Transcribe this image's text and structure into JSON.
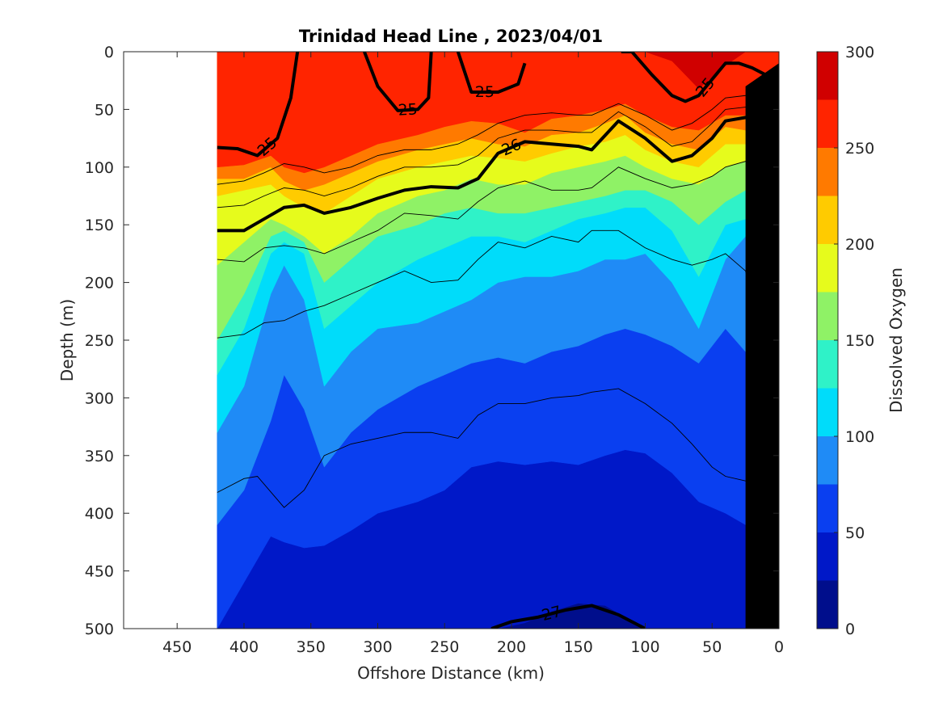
{
  "chart_data": {
    "type": "contour",
    "title": "Trinidad Head Line , 2023/04/01",
    "xlabel": "Offshore Distance (km)",
    "ylabel": "Depth (m)",
    "xlim": [
      490,
      0
    ],
    "ylim": [
      500,
      0
    ],
    "x_reversed": true,
    "y_reversed": true,
    "x_ticks": [
      450,
      400,
      350,
      300,
      250,
      200,
      150,
      100,
      50,
      0
    ],
    "y_ticks": [
      0,
      50,
      100,
      150,
      200,
      250,
      300,
      350,
      400,
      450,
      500
    ],
    "data_extent_x": [
      420,
      0
    ],
    "colorbar": {
      "label": "Dissolved Oxygen",
      "range": [
        0,
        300
      ],
      "ticks": [
        0,
        50,
        100,
        150,
        200,
        250,
        300
      ],
      "levels": [
        0,
        25,
        50,
        75,
        100,
        125,
        150,
        175,
        200,
        225,
        250,
        275,
        300
      ],
      "colors": [
        "#000e8c",
        "#0018c8",
        "#0a3ff0",
        "#1f8bf6",
        "#00dcfa",
        "#2ff2c8",
        "#8ff266",
        "#e6fb1c",
        "#ffcb00",
        "#ff7a00",
        "#ff2400",
        "#d00000"
      ]
    },
    "oxygen_profiles": {
      "x": [
        420,
        400,
        380,
        370,
        355,
        340,
        320,
        300,
        270,
        250,
        230,
        210,
        190,
        170,
        150,
        130,
        115,
        100,
        80,
        60,
        40,
        25,
        10,
        0
      ],
      "boundaries": [
        {
          "level": 25,
          "depth": [
            500,
            500,
            500,
            500,
            500,
            500,
            500,
            500,
            500,
            500,
            500,
            500,
            495,
            485,
            478,
            480,
            490,
            500,
            500,
            500,
            500,
            500,
            500,
            500
          ]
        },
        {
          "level": 50,
          "depth": [
            500,
            460,
            420,
            425,
            430,
            428,
            415,
            400,
            390,
            380,
            360,
            355,
            358,
            355,
            358,
            350,
            345,
            348,
            365,
            390,
            400,
            410,
            415,
            420
          ]
        },
        {
          "level": 75,
          "depth": [
            410,
            380,
            320,
            280,
            310,
            360,
            330,
            310,
            290,
            280,
            270,
            265,
            270,
            260,
            255,
            245,
            240,
            245,
            255,
            270,
            240,
            260,
            280,
            300
          ]
        },
        {
          "level": 100,
          "depth": [
            330,
            290,
            210,
            185,
            215,
            290,
            260,
            240,
            235,
            225,
            215,
            200,
            195,
            195,
            190,
            180,
            180,
            175,
            200,
            240,
            180,
            160,
            170,
            190
          ]
        },
        {
          "level": 125,
          "depth": [
            280,
            240,
            175,
            165,
            175,
            240,
            220,
            200,
            180,
            170,
            160,
            160,
            165,
            155,
            145,
            140,
            135,
            135,
            155,
            195,
            150,
            145,
            150,
            160
          ]
        },
        {
          "level": 150,
          "depth": [
            250,
            210,
            160,
            155,
            165,
            200,
            180,
            160,
            150,
            140,
            135,
            140,
            140,
            135,
            130,
            125,
            120,
            120,
            130,
            150,
            130,
            120,
            125,
            135
          ]
        },
        {
          "level": 175,
          "depth": [
            185,
            165,
            145,
            150,
            160,
            175,
            160,
            140,
            125,
            120,
            110,
            115,
            115,
            105,
            100,
            95,
            90,
            100,
            110,
            115,
            100,
            95,
            100,
            110
          ]
        },
        {
          "level": 200,
          "depth": [
            125,
            120,
            115,
            125,
            135,
            140,
            125,
            110,
            100,
            95,
            90,
            92,
            95,
            88,
            82,
            78,
            72,
            85,
            95,
            100,
            80,
            80,
            85,
            95
          ]
        },
        {
          "level": 225,
          "depth": [
            110,
            110,
            100,
            112,
            120,
            115,
            105,
            95,
            85,
            80,
            75,
            80,
            82,
            72,
            70,
            62,
            55,
            70,
            80,
            85,
            65,
            68,
            72,
            80
          ]
        },
        {
          "level": 250,
          "depth": [
            100,
            98,
            90,
            100,
            105,
            100,
            90,
            80,
            72,
            65,
            60,
            62,
            70,
            58,
            55,
            50,
            45,
            55,
            65,
            68,
            55,
            55,
            60,
            65
          ]
        },
        {
          "level": 275,
          "depth": [
            0,
            0,
            0,
            0,
            0,
            0,
            0,
            0,
            0,
            0,
            0,
            0,
            0,
            0,
            0,
            0,
            0,
            0,
            8,
            32,
            12,
            0,
            0,
            0
          ]
        }
      ]
    },
    "density_contours": [
      {
        "label": "25",
        "x": [
          420,
          405,
          390,
          375,
          365,
          360
        ],
        "depth": [
          83,
          84,
          90,
          75,
          40,
          0
        ]
      },
      {
        "label": "25",
        "x": [
          310,
          300,
          285,
          270,
          262,
          260
        ],
        "depth": [
          0,
          30,
          51,
          50,
          40,
          0
        ]
      },
      {
        "label": "25",
        "x": [
          240,
          230,
          210,
          195,
          190
        ],
        "depth": [
          0,
          35,
          35,
          28,
          10
        ]
      },
      {
        "label": "25",
        "x": [
          118,
          110,
          95,
          80,
          70,
          60,
          50,
          40,
          30,
          20,
          10,
          5,
          0
        ],
        "depth": [
          0,
          0,
          20,
          38,
          43,
          38,
          24,
          10,
          10,
          14,
          20,
          28,
          45
        ]
      },
      {
        "label": "26",
        "x": [
          420,
          400,
          385,
          370,
          355,
          340,
          320,
          300,
          280,
          260,
          240,
          225,
          210,
          190,
          170,
          150,
          140,
          120,
          100,
          80,
          65,
          50,
          40,
          25,
          12,
          5
        ],
        "depth": [
          155,
          155,
          145,
          135,
          133,
          140,
          135,
          127,
          120,
          117,
          118,
          110,
          88,
          78,
          80,
          82,
          85,
          60,
          75,
          95,
          90,
          75,
          60,
          57,
          60,
          70
        ]
      },
      {
        "label": "27",
        "x": [
          215,
          200,
          180,
          160,
          140,
          120,
          100
        ],
        "depth": [
          500,
          494,
          490,
          484,
          480,
          488,
          500
        ]
      }
    ],
    "thin_contours": [
      {
        "x": [
          420,
          400,
          385,
          370,
          355,
          340,
          320,
          300,
          280,
          260,
          240,
          225,
          210,
          190,
          170,
          150,
          140,
          120,
          100,
          80,
          65,
          50,
          40,
          25,
          12
        ],
        "depth": [
          115,
          112,
          105,
          97,
          100,
          105,
          100,
          90,
          85,
          85,
          80,
          72,
          62,
          55,
          53,
          55,
          55,
          45,
          55,
          68,
          62,
          50,
          40,
          38,
          45
        ]
      },
      {
        "x": [
          420,
          400,
          385,
          370,
          355,
          340,
          320,
          300,
          280,
          260,
          240,
          225,
          210,
          190,
          170,
          150,
          140,
          120,
          100,
          80,
          65,
          50,
          40,
          25,
          12
        ],
        "depth": [
          135,
          133,
          125,
          118,
          120,
          125,
          118,
          108,
          100,
          100,
          98,
          90,
          75,
          68,
          68,
          70,
          70,
          52,
          65,
          82,
          78,
          62,
          50,
          48,
          55
        ]
      },
      {
        "x": [
          420,
          400,
          385,
          370,
          355,
          340,
          320,
          300,
          280,
          260,
          240,
          225,
          210,
          190,
          170,
          150,
          140,
          120,
          100,
          80,
          65,
          50,
          40,
          25,
          12
        ],
        "depth": [
          180,
          182,
          170,
          168,
          170,
          175,
          165,
          155,
          140,
          142,
          145,
          130,
          118,
          112,
          120,
          120,
          118,
          100,
          110,
          118,
          115,
          108,
          100,
          95,
          110
        ]
      },
      {
        "x": [
          420,
          400,
          385,
          370,
          355,
          340,
          320,
          300,
          280,
          260,
          240,
          225,
          210,
          190,
          170,
          150,
          140,
          120,
          100,
          80,
          65,
          50,
          40,
          25,
          15
        ],
        "depth": [
          248,
          245,
          235,
          233,
          225,
          220,
          210,
          200,
          190,
          200,
          198,
          180,
          165,
          170,
          160,
          165,
          155,
          155,
          170,
          180,
          185,
          180,
          175,
          190,
          240
        ]
      },
      {
        "x": [
          420,
          400,
          390,
          370,
          355,
          340,
          320,
          300,
          280,
          260,
          240,
          225,
          210,
          190,
          170,
          150,
          140,
          120,
          100,
          80,
          65,
          50,
          40,
          25,
          15
        ],
        "depth": [
          382,
          370,
          368,
          395,
          380,
          350,
          340,
          335,
          330,
          330,
          335,
          315,
          305,
          305,
          300,
          298,
          295,
          292,
          305,
          322,
          340,
          360,
          368,
          372,
          375
        ]
      }
    ],
    "bathymetry": {
      "x": [
        25,
        0,
        0,
        25
      ],
      "depth": [
        500,
        500,
        10,
        30
      ]
    }
  }
}
